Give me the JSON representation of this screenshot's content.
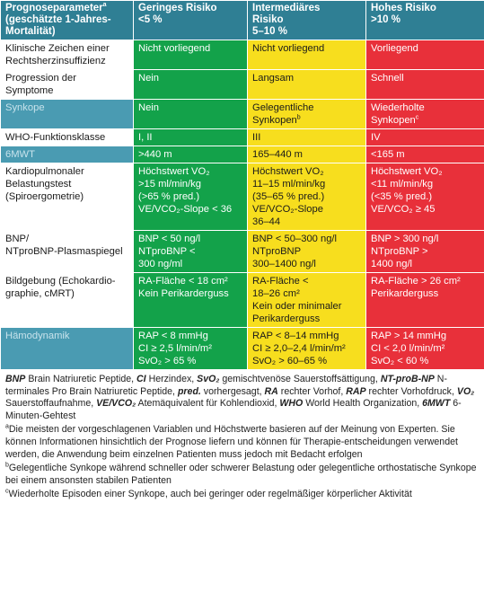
{
  "header": {
    "col0": "Prognoseparameter",
    "col0_sup": "a",
    "col0_sub": "(geschätzte 1-Jahres-Mortalität)",
    "low": [
      "Geringes Risiko",
      "<5 %"
    ],
    "mid": [
      "Intermediäres",
      "Risiko",
      "5–10 %"
    ],
    "high": [
      "Hohes Risiko",
      ">10 %"
    ]
  },
  "rows": [
    {
      "label": [
        "Klinische Zeichen einer",
        "Rechtsherzinsuffizienz"
      ],
      "teal": false,
      "low": [
        "Nicht vorliegend"
      ],
      "mid": [
        "Nicht vorliegend"
      ],
      "high": [
        "Vorliegend"
      ]
    },
    {
      "label": [
        "Progression der",
        "Symptome"
      ],
      "teal": false,
      "low": [
        "Nein"
      ],
      "mid": [
        "Langsam"
      ],
      "high": [
        "Schnell"
      ]
    },
    {
      "label": [
        "Synkope"
      ],
      "teal": true,
      "low": [
        "Nein"
      ],
      "mid": [
        "Gelegentliche",
        "Synkopen"
      ],
      "mid_sup": "b",
      "high": [
        "Wiederholte",
        "Synkopen"
      ],
      "high_sup": "c"
    },
    {
      "label": [
        "WHO-Funktionsklasse"
      ],
      "teal": false,
      "low": [
        "I, II"
      ],
      "mid": [
        "III"
      ],
      "high": [
        "IV"
      ]
    },
    {
      "label": [
        "6MWT"
      ],
      "teal": true,
      "low": [
        ">440 m"
      ],
      "mid": [
        "165–440 m"
      ],
      "high": [
        "<165 m"
      ]
    },
    {
      "label": [
        "Kardiopulmonaler",
        "Belastungstest",
        "(Spiroergometrie)"
      ],
      "teal": false,
      "low": [
        "Höchstwert VO₂",
        ">15 ml/min/kg",
        "(>65 % pred.)",
        "VE/VCO₂-Slope < 36"
      ],
      "mid": [
        "Höchstwert VO₂",
        "11–15 ml/min/kg",
        "(35–65 % pred.)",
        "VE/VCO₂-Slope",
        "36–44"
      ],
      "high": [
        "Höchstwert VO₂",
        "<11 ml/min/kg",
        "(<35 % pred.)",
        "VE/VCO₂ ≥ 45"
      ]
    },
    {
      "label": [
        "BNP/",
        "NTproBNP-Plasmaspiegel"
      ],
      "teal": false,
      "low": [
        "BNP < 50 ng/l",
        "NTproBNP <",
        "300 ng/ml"
      ],
      "mid": [
        "BNP < 50–300 ng/l",
        "NTproBNP",
        "300–1400 ng/l"
      ],
      "high": [
        "BNP > 300 ng/l",
        "NTproBNP >",
        "1400 ng/l"
      ]
    },
    {
      "label": [
        "Bildgebung (Echokardio-",
        "graphie, cMRT)"
      ],
      "teal": false,
      "low": [
        "RA-Fläche < 18 cm²",
        "Kein Perikarderguss"
      ],
      "mid": [
        "RA-Fläche <",
        "18–26 cm²",
        "Kein oder minimaler",
        "Perikarderguss"
      ],
      "high": [
        "RA-Fläche > 26 cm²",
        "Perikarderguss"
      ]
    },
    {
      "label": [
        "Hämodynamik"
      ],
      "teal": true,
      "low": [
        "RAP < 8 mmHg",
        "CI ≥ 2,5 l/min/m²",
        "SvO₂ > 65 %"
      ],
      "mid": [
        "RAP < 8–14 mmHg",
        "CI ≥ 2,0–2,4 l/min/m²",
        "SvO₂ > 60–65 %"
      ],
      "high": [
        "RAP > 14 mmHg",
        "CI < 2,0 l/min/m²",
        "SvO₂ < 60 %"
      ]
    }
  ],
  "footnotes": {
    "abbr": [
      {
        "k": "BNP",
        "v": " Brain Natriuretic Peptide, "
      },
      {
        "k": "CI",
        "v": " Herzindex, "
      },
      {
        "k": "SvO₂",
        "v": " gemischtvenöse Sauerstoffsättigung, "
      },
      {
        "k": "NT-proB-NP",
        "v": " N-terminales Pro Brain Natriuretic Peptide, "
      },
      {
        "k": "pred.",
        "v": " vorhergesagt, "
      },
      {
        "k": "RA",
        "v": " rechter Vorhof, "
      },
      {
        "k": "RAP",
        "v": " rechter Vorhofdruck, "
      },
      {
        "k": "VO₂",
        "v": " Sauerstoffaufnahme, "
      },
      {
        "k": "VE/VCO₂",
        "v": " Atemäquivalent für Kohlendioxid, "
      },
      {
        "k": "WHO",
        "v": " World Health Organization, "
      },
      {
        "k": "6MWT",
        "v": " 6-Minuten-Gehtest"
      }
    ],
    "a": "Die meisten der vorgeschlagenen Variablen und Höchstwerte basieren auf der Meinung von Experten. Sie können Informationen hinsichtlich der Prognose liefern und können für Therapie-entscheidungen verwendet werden, die Anwendung beim einzelnen Patienten muss jedoch mit Bedacht erfolgen",
    "b": "Gelegentliche Synkope während schneller oder schwerer Belastung oder gelegentliche orthostatische Synkope bei einem ansonsten stabilen Patienten",
    "c": "Wiederholte Episoden einer Synkope, auch bei geringer oder regelmäßiger körperlicher Aktivität"
  },
  "colors": {
    "green": "#13a24a",
    "yellow": "#f7de1e",
    "red": "#e8303a",
    "teal": "#2f7f94"
  }
}
